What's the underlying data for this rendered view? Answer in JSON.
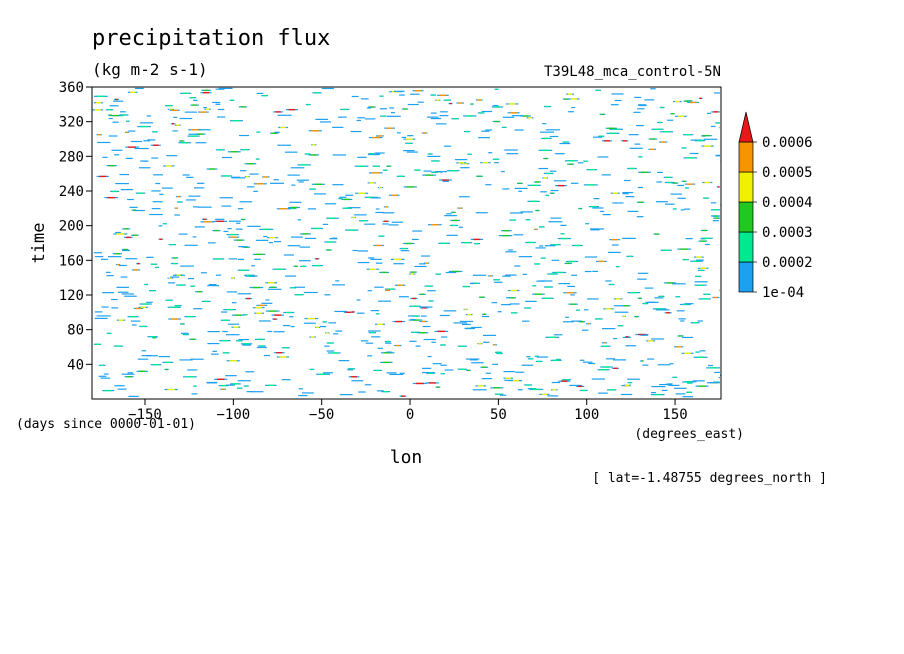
{
  "title": "precipitation flux",
  "units": "(kg m-2 s-1)",
  "run_label": "T39L48_mca_control-5N",
  "footnote": "[ lat=-1.48755 degrees_north ]",
  "colors": {
    "level_1": "#1ca0f0",
    "level_2": "#00e890",
    "level_3": "#20c820",
    "level_4": "#f0f000",
    "level_5": "#f89400",
    "level_6": "#e81818"
  },
  "chart_data": {
    "type": "heatmap",
    "xlabel": "lon",
    "x_units": "(degrees_east)",
    "ylabel": "time",
    "y_units": "(days since 0000-01-01)",
    "xlim": [
      -180,
      176
    ],
    "ylim": [
      0,
      360
    ],
    "x_ticks": [
      -150,
      -100,
      -50,
      0,
      50,
      100,
      150
    ],
    "y_ticks": [
      40,
      80,
      120,
      160,
      200,
      240,
      280,
      320,
      360
    ],
    "colorbar": {
      "levels": [
        "1e-04",
        "0.0002",
        "0.0003",
        "0.0004",
        "0.0005",
        "0.0006"
      ],
      "extend": "max"
    },
    "field_description": "sparse short zonal streaks of precipitation scattered over all longitudes and times, mostly at 1e-04 to 0.0003, with isolated maxima above 0.0006"
  }
}
